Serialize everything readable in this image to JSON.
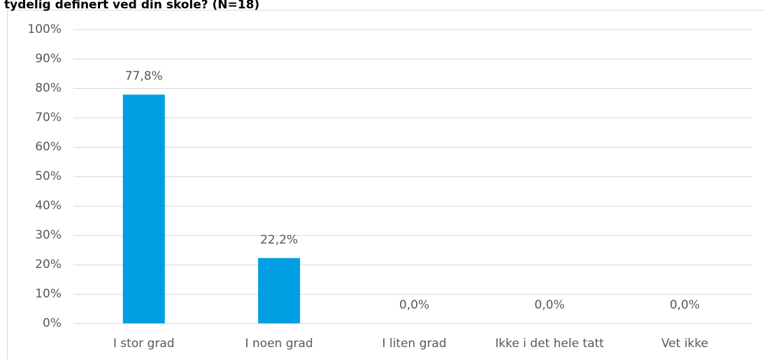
{
  "chart_data": {
    "type": "bar",
    "title": "tydelig definert ved din skole? (N=18)",
    "categories": [
      "I stor grad",
      "I noen grad",
      "I liten grad",
      "Ikke i det hele tatt",
      "Vet ikke"
    ],
    "values": [
      77.8,
      22.2,
      0,
      0,
      0
    ],
    "value_labels": [
      "77,8%",
      "22,2%",
      "0,0%",
      "0,0%",
      "0,0%"
    ],
    "color": "#009fe3",
    "ylim": [
      0,
      100
    ],
    "yticks": [
      {
        "value": 0,
        "label": "0%"
      },
      {
        "value": 10,
        "label": "10%"
      },
      {
        "value": 20,
        "label": "20%"
      },
      {
        "value": 30,
        "label": "30%"
      },
      {
        "value": 40,
        "label": "40%"
      },
      {
        "value": 50,
        "label": "50%"
      },
      {
        "value": 60,
        "label": "60%"
      },
      {
        "value": 70,
        "label": "70%"
      },
      {
        "value": 80,
        "label": "80%"
      },
      {
        "value": 90,
        "label": "90%"
      },
      {
        "value": 100,
        "label": "100%"
      }
    ],
    "grid": true
  }
}
